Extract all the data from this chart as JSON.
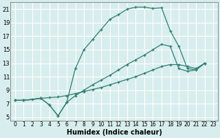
{
  "xlabel": "Humidex (Indice chaleur)",
  "bg_color": "#d8eeee",
  "grid_color": "#ffffff",
  "line_color": "#2d7d6e",
  "xlim": [
    -0.5,
    23.5
  ],
  "ylim": [
    4.5,
    22.0
  ],
  "xticks": [
    0,
    1,
    2,
    3,
    4,
    5,
    6,
    7,
    8,
    9,
    10,
    11,
    12,
    13,
    14,
    15,
    16,
    17,
    18,
    19,
    20,
    21,
    22,
    23
  ],
  "yticks": [
    5,
    7,
    9,
    11,
    13,
    15,
    17,
    19,
    21
  ],
  "curve1_x": [
    0,
    1,
    3,
    4,
    5,
    6,
    7,
    8,
    9,
    10,
    11,
    12,
    13,
    14,
    15,
    16,
    17,
    18,
    19,
    20,
    21,
    22
  ],
  "curve1_y": [
    7.5,
    7.5,
    7.8,
    6.8,
    5.2,
    7.2,
    12.2,
    15.0,
    16.5,
    18.0,
    19.5,
    20.2,
    21.0,
    21.3,
    21.3,
    21.1,
    21.2,
    17.8,
    15.5,
    12.2,
    12.0,
    13.0
  ],
  "curve2_x": [
    0,
    1,
    3,
    4,
    5,
    6,
    7,
    8,
    9,
    10,
    11,
    12,
    13,
    14,
    15,
    16,
    17,
    18,
    19,
    20,
    21,
    22
  ],
  "curve2_y": [
    7.5,
    7.5,
    7.8,
    6.8,
    5.2,
    7.2,
    8.2,
    9.0,
    9.8,
    10.5,
    11.2,
    12.0,
    12.8,
    13.5,
    14.2,
    15.0,
    15.8,
    15.5,
    12.2,
    11.8,
    12.0,
    13.0
  ],
  "curve3_x": [
    0,
    1,
    2,
    3,
    4,
    5,
    6,
    7,
    8,
    9,
    10,
    11,
    12,
    13,
    14,
    15,
    16,
    17,
    18,
    19,
    20,
    21,
    22
  ],
  "curve3_y": [
    7.5,
    7.5,
    7.6,
    7.8,
    7.9,
    8.0,
    8.2,
    8.5,
    8.8,
    9.1,
    9.4,
    9.8,
    10.2,
    10.6,
    11.0,
    11.5,
    12.0,
    12.5,
    12.8,
    12.8,
    12.5,
    12.2,
    13.0
  ]
}
